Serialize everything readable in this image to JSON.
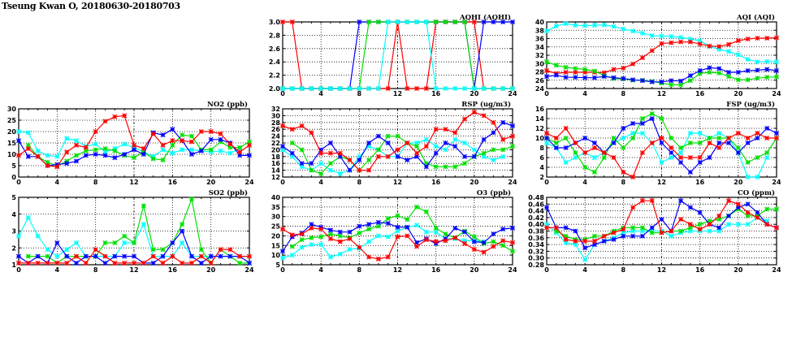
{
  "page_title": "Tseung Kwan O, 20180630-20180703",
  "colors": {
    "red": "#ff0000",
    "blue": "#0000ff",
    "green": "#00e000",
    "cyan": "#00ffff"
  },
  "chart_data": [
    {
      "id": "aqhi",
      "type": "line",
      "title": "AQHI (AQHI)",
      "ylim": [
        2.0,
        3.0
      ],
      "yticks": [
        "2.0",
        "2.2",
        "2.4",
        "2.6",
        "2.8",
        "3.0"
      ],
      "xlim": [
        0,
        24
      ],
      "xticks": [
        "0",
        "4",
        "8",
        "12",
        "16",
        "20",
        "24"
      ],
      "series": [
        {
          "color": "red",
          "values": [
            3,
            3,
            2,
            2,
            2,
            2,
            2,
            2,
            2,
            2,
            2,
            2,
            3,
            2,
            2,
            2,
            3,
            3,
            3,
            3,
            3,
            2,
            2,
            2,
            2
          ]
        },
        {
          "color": "blue",
          "values": [
            2,
            2,
            2,
            2,
            2,
            2,
            2,
            2,
            3,
            3,
            3,
            3,
            3,
            3,
            3,
            3,
            3,
            3,
            3,
            3,
            2,
            3,
            3,
            3,
            3
          ]
        },
        {
          "color": "green",
          "values": [
            2,
            2,
            2,
            2,
            2,
            2,
            2,
            2,
            2,
            3,
            3,
            3,
            3,
            3,
            3,
            3,
            3,
            3,
            3,
            3,
            2,
            2,
            2,
            2,
            2
          ]
        },
        {
          "color": "cyan",
          "values": [
            2,
            2,
            2,
            2,
            2,
            2,
            2,
            2,
            2,
            2,
            2,
            3,
            3,
            3,
            3,
            3,
            2,
            2,
            2,
            2,
            2,
            2,
            2,
            2,
            2
          ]
        }
      ]
    },
    {
      "id": "aqi",
      "type": "line",
      "title": "AQI (AQI)",
      "ylim": [
        24,
        40
      ],
      "yticks": [
        "24",
        "26",
        "28",
        "30",
        "32",
        "34",
        "36",
        "38",
        "40"
      ],
      "xlim": [
        0,
        24
      ],
      "xticks": [
        "0",
        "4",
        "8",
        "12",
        "16",
        "20",
        "24"
      ],
      "series": [
        {
          "color": "cyan",
          "values": [
            37.8,
            39,
            39.6,
            39.2,
            39.1,
            39.2,
            39.3,
            38.9,
            38.3,
            37.8,
            37.3,
            36.7,
            36.6,
            36.5,
            36.3,
            35.9,
            35.5,
            34.1,
            33.4,
            32.9,
            32.1,
            31,
            30.4,
            30.5,
            30.4
          ]
        },
        {
          "color": "red",
          "values": [
            28.3,
            27.6,
            27.9,
            27.9,
            27.9,
            27.9,
            27.8,
            28.6,
            28.9,
            29.9,
            31.4,
            33.1,
            34.8,
            35,
            35.2,
            35.2,
            34.7,
            34.2,
            34.1,
            34.6,
            35.5,
            35.9,
            36.1,
            36.1,
            36.2
          ]
        },
        {
          "color": "green",
          "values": [
            30.4,
            29.6,
            29.1,
            28.8,
            28.6,
            28.2,
            27.1,
            26.4,
            26.3,
            26,
            26,
            25.7,
            25.3,
            24.9,
            24.9,
            25.9,
            27.6,
            27.9,
            27.7,
            26.9,
            26.1,
            26.1,
            26.5,
            26.7,
            26.8
          ]
        },
        {
          "color": "blue",
          "values": [
            26.9,
            27.2,
            26.7,
            26.7,
            26.6,
            26.6,
            26.9,
            26.6,
            26.4,
            26.1,
            25.9,
            25.6,
            25.6,
            25.9,
            25.8,
            27.1,
            28.3,
            29,
            28.8,
            27.9,
            27.9,
            28.3,
            28.4,
            28.6,
            28.3
          ]
        }
      ]
    },
    {
      "id": "no2",
      "type": "line",
      "title": "NO2 (ppb)",
      "ylim": [
        0,
        30
      ],
      "yticks": [
        "0",
        "5",
        "10",
        "15",
        "20",
        "25",
        "30"
      ],
      "xlim": [
        0,
        24
      ],
      "xticks": [
        "0",
        "4",
        "8",
        "12",
        "16",
        "20",
        "24"
      ],
      "series": [
        {
          "color": "cyan",
          "values": [
            20,
            19.5,
            11.5,
            9.5,
            9,
            17,
            16,
            13.5,
            14.5,
            11,
            12.5,
            14.5,
            13,
            11,
            9,
            12,
            10.5,
            12,
            12,
            11.5,
            11,
            11.5,
            10.5,
            12.5,
            null
          ]
        },
        {
          "color": "green",
          "values": [
            null,
            14,
            9,
            6.5,
            5,
            7,
            9.5,
            11.5,
            12,
            12.5,
            11.5,
            9.5,
            8.5,
            11,
            8,
            7.5,
            14,
            18.5,
            18,
            12,
            12,
            15.5,
            13,
            13,
            15.5
          ]
        },
        {
          "color": "blue",
          "values": [
            16,
            9,
            9,
            5,
            5.5,
            6,
            7,
            9.5,
            10,
            9.5,
            8.5,
            10,
            12,
            10,
            19.5,
            18.5,
            21,
            16,
            10,
            11.5,
            16.5,
            16.5,
            15,
            9.5,
            9.5
          ]
        },
        {
          "color": "red",
          "values": [
            9.5,
            12.5,
            9,
            5,
            4.5,
            11,
            14,
            13,
            20,
            24.5,
            26.5,
            27,
            14,
            12.5,
            19,
            14,
            16,
            16,
            15.5,
            20,
            20,
            19,
            14.5,
            11,
            14
          ]
        }
      ]
    },
    {
      "id": "rsp",
      "type": "line",
      "title": "RSP (ug/m3)",
      "ylim": [
        12,
        32
      ],
      "yticks": [
        "12",
        "14",
        "16",
        "18",
        "20",
        "22",
        "24",
        "26",
        "28",
        "30",
        "32"
      ],
      "xlim": [
        0,
        24
      ],
      "xticks": [
        "0",
        "4",
        "8",
        "12",
        "16",
        "20",
        "24"
      ],
      "series": [
        {
          "color": "cyan",
          "values": [
            20,
            18,
            15,
            14,
            16,
            14,
            13,
            14,
            18,
            21,
            20,
            18,
            18,
            22,
            22,
            23,
            21,
            20,
            23,
            22,
            20,
            18,
            17,
            18,
            null
          ]
        },
        {
          "color": "green",
          "values": [
            null,
            22,
            20,
            14,
            13,
            16,
            18,
            17,
            14,
            17,
            20,
            24,
            24,
            22,
            21,
            16,
            15,
            15,
            15,
            16,
            18,
            19,
            20,
            20,
            21
          ]
        },
        {
          "color": "blue",
          "values": [
            21,
            19,
            16,
            16,
            20,
            22,
            18,
            14,
            17,
            22,
            24,
            22,
            18,
            17,
            18,
            15,
            19,
            22,
            21,
            18,
            18,
            23,
            25,
            28,
            27
          ]
        },
        {
          "color": "red",
          "values": [
            27,
            26,
            27,
            25,
            19,
            19,
            19,
            17,
            14,
            14,
            18,
            18,
            20,
            22,
            19,
            21,
            26,
            26,
            25,
            29,
            31,
            30,
            28,
            23,
            24
          ]
        }
      ]
    },
    {
      "id": "fsp",
      "type": "line",
      "title": "FSP (ug/m3)",
      "ylim": [
        2,
        16
      ],
      "yticks": [
        "2",
        "4",
        "6",
        "8",
        "10",
        "12",
        "14",
        "16"
      ],
      "xlim": [
        0,
        24
      ],
      "xticks": [
        "0",
        "4",
        "8",
        "12",
        "16",
        "20",
        "24"
      ],
      "series": [
        {
          "color": "cyan",
          "values": [
            9,
            8,
            5,
            6,
            7,
            6,
            7,
            9,
            10,
            11,
            11,
            9,
            5,
            6,
            7,
            11,
            11,
            10,
            11,
            10,
            7,
            2,
            2,
            6,
            null
          ]
        },
        {
          "color": "green",
          "values": [
            10,
            9,
            10,
            7,
            4,
            3,
            6,
            10,
            8,
            10,
            14,
            15,
            14,
            10,
            8,
            9,
            9,
            10,
            10,
            10,
            8,
            5,
            6,
            7,
            10
          ]
        },
        {
          "color": "blue",
          "values": [
            10,
            8,
            8,
            9,
            10,
            9,
            7,
            9,
            12,
            13,
            13,
            14,
            9,
            7,
            5,
            3,
            5,
            6,
            9,
            9,
            7,
            9,
            10,
            12,
            11
          ]
        },
        {
          "color": "red",
          "values": [
            11,
            10,
            12,
            9,
            7,
            8,
            7,
            6,
            3,
            2,
            7,
            9,
            10,
            8,
            6,
            6,
            6,
            9,
            8,
            10,
            11,
            10,
            11,
            10,
            10
          ]
        }
      ]
    },
    {
      "id": "so2",
      "type": "line",
      "title": "SO2 (ppb)",
      "ylim": [
        1,
        5
      ],
      "yticks": [
        "1",
        "2",
        "3",
        "4",
        "5"
      ],
      "xlim": [
        0,
        24
      ],
      "xticks": [
        "0",
        "4",
        "8",
        "12",
        "16",
        "20",
        "24"
      ],
      "series": [
        {
          "color": "cyan",
          "values": [
            2.7,
            3.8,
            2.7,
            1.9,
            1.5,
            1.9,
            2.3,
            1.5,
            1.5,
            1.5,
            1.5,
            2.3,
            2.3,
            3.4,
            1.5,
            1.5,
            1.5,
            2.3,
            1.5,
            1.5,
            1.5,
            1.5,
            1.5,
            1.5,
            1.5
          ]
        },
        {
          "color": "green",
          "values": [
            null,
            1.5,
            1.5,
            1.5,
            1.1,
            1.5,
            1.5,
            1.5,
            1.5,
            2.3,
            2.3,
            2.7,
            2.3,
            4.5,
            1.9,
            1.9,
            2.3,
            3.4,
            4.9,
            1.9,
            1.1,
            1.9,
            1.5,
            1.1,
            1.1
          ]
        },
        {
          "color": "blue",
          "values": [
            1.5,
            1.1,
            1.5,
            1.1,
            2.3,
            1.5,
            1.1,
            1.5,
            1.5,
            1.1,
            1.5,
            1.5,
            1.5,
            1.1,
            1.1,
            1.5,
            2.3,
            3.0,
            1.5,
            1.1,
            1.5,
            1.5,
            1.5,
            1.5,
            1.1
          ]
        },
        {
          "color": "red",
          "values": [
            1.1,
            1.1,
            1.1,
            1.1,
            1.1,
            1.1,
            1.5,
            1.1,
            1.9,
            1.5,
            1.1,
            1.1,
            1.1,
            1.1,
            1.5,
            1.1,
            1.5,
            1.1,
            1.1,
            1.5,
            1.1,
            1.9,
            1.9,
            1.5,
            1.5
          ]
        }
      ]
    },
    {
      "id": "o3",
      "type": "line",
      "title": "O3 (ppb)",
      "ylim": [
        5,
        40
      ],
      "yticks": [
        "5",
        "10",
        "15",
        "20",
        "25",
        "30",
        "35",
        "40"
      ],
      "xlim": [
        0,
        24
      ],
      "xticks": [
        "0",
        "4",
        "8",
        "12",
        "16",
        "20",
        "24"
      ],
      "series": [
        {
          "color": "cyan",
          "values": [
            8.5,
            10,
            14,
            15.5,
            15.5,
            9,
            10.5,
            13,
            13.5,
            17,
            20,
            19.5,
            22.5,
            24.5,
            25.5,
            22,
            22,
            18.5,
            18.5,
            17.5,
            17.5,
            17,
            null,
            null,
            null
          ]
        },
        {
          "color": "green",
          "values": [
            null,
            14.5,
            18,
            19,
            19.5,
            21,
            20,
            19,
            21.5,
            23.5,
            25,
            29,
            30.5,
            28.5,
            35,
            32.5,
            24,
            21,
            19,
            22.5,
            19.5,
            16,
            17,
            15,
            12
          ]
        },
        {
          "color": "blue",
          "values": [
            12,
            19.5,
            21.5,
            26,
            24.5,
            23,
            22,
            22,
            25,
            26,
            27,
            26.5,
            24.5,
            24.5,
            16.5,
            18.5,
            16,
            18.5,
            24,
            22,
            17,
            16.5,
            21,
            23.5,
            24
          ]
        },
        {
          "color": "red",
          "values": [
            23.5,
            20.5,
            21,
            24,
            23.5,
            18.5,
            17,
            18.5,
            14,
            9,
            8,
            9,
            19.5,
            20,
            14.5,
            18,
            17,
            17.5,
            19,
            16,
            13,
            11.5,
            14.5,
            17.5,
            16.5
          ]
        }
      ]
    },
    {
      "id": "co",
      "type": "line",
      "title": "CO (ppm)",
      "ylim": [
        0.28,
        0.48
      ],
      "yticks": [
        "0.28",
        "0.30",
        "0.32",
        "0.34",
        "0.36",
        "0.38",
        "0.40",
        "0.42",
        "0.44",
        "0.46",
        "0.48"
      ],
      "xlim": [
        0,
        24
      ],
      "xticks": [
        "0",
        "4",
        "8",
        "12",
        "16",
        "20",
        "24"
      ],
      "series": [
        {
          "color": "cyan",
          "values": [
            0.4,
            0.375,
            0.345,
            0.34,
            0.295,
            0.34,
            0.35,
            0.36,
            0.375,
            0.38,
            0.38,
            0.38,
            0.38,
            0.365,
            0.375,
            0.38,
            0.38,
            0.38,
            0.38,
            0.4,
            0.4,
            0.4,
            0.42,
            0.41,
            null
          ]
        },
        {
          "color": "green",
          "values": [
            null,
            0.38,
            0.365,
            0.355,
            0.355,
            0.365,
            0.365,
            0.38,
            0.39,
            0.39,
            0.39,
            0.375,
            0.375,
            0.38,
            0.38,
            0.39,
            0.4,
            0.41,
            0.415,
            0.425,
            0.445,
            0.425,
            0.425,
            0.445,
            0.445
          ]
        },
        {
          "color": "blue",
          "values": [
            0.45,
            0.39,
            0.39,
            0.38,
            0.33,
            0.34,
            0.35,
            0.355,
            0.365,
            0.365,
            0.365,
            0.39,
            0.415,
            0.38,
            0.47,
            0.45,
            0.435,
            0.4,
            0.39,
            0.425,
            0.45,
            0.46,
            0.435,
            0.4,
            0.39
          ]
        },
        {
          "color": "red",
          "values": [
            0.39,
            0.39,
            0.355,
            0.35,
            0.35,
            0.35,
            0.365,
            0.375,
            0.385,
            0.45,
            0.47,
            0.47,
            0.375,
            0.38,
            0.415,
            0.4,
            0.385,
            0.4,
            0.425,
            0.47,
            0.46,
            0.435,
            0.42,
            0.4,
            0.39
          ]
        }
      ]
    }
  ]
}
